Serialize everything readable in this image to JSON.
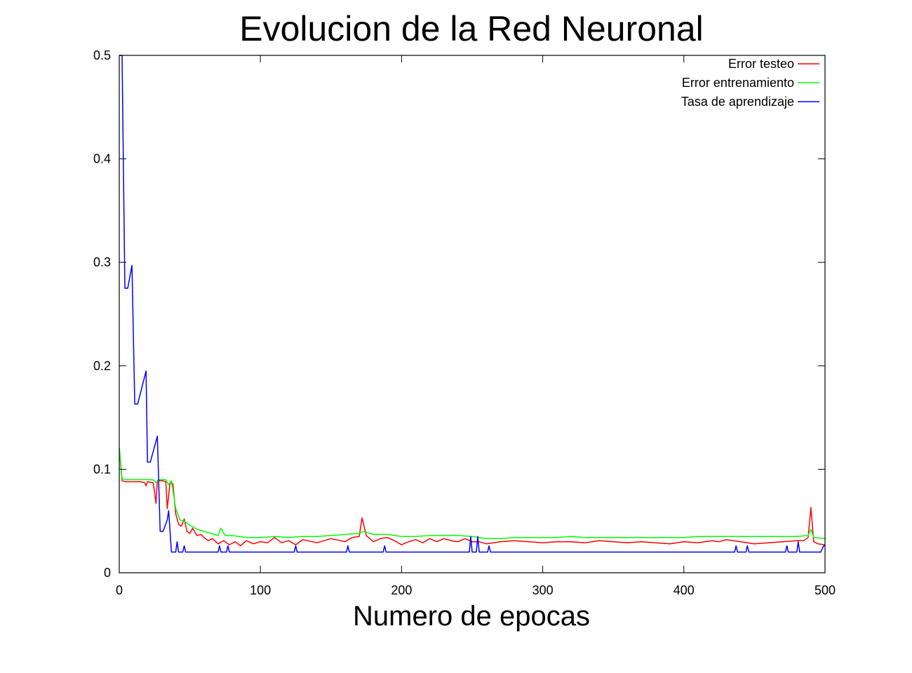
{
  "chart_data": {
    "type": "line",
    "title": "Evolucion de la Red Neuronal",
    "xlabel": "Numero de epocas",
    "ylabel": "",
    "xlim": [
      0,
      500
    ],
    "ylim": [
      0,
      0.5
    ],
    "xticks": [
      0,
      100,
      200,
      300,
      400,
      500
    ],
    "xtick_labels": [
      "0",
      "100",
      "200",
      "300",
      "400",
      "500"
    ],
    "yticks": [
      0,
      0.1,
      0.2,
      0.3,
      0.4,
      0.5
    ],
    "ytick_labels": [
      "0",
      "0.1",
      "0.2",
      "0.3",
      "0.4",
      "0.5"
    ],
    "grid": false,
    "legend_position": "top-right",
    "series": [
      {
        "name": "Error testeo",
        "color": "#ff0000",
        "points": [
          [
            0,
            0.12
          ],
          [
            2,
            0.089
          ],
          [
            5,
            0.088
          ],
          [
            10,
            0.088
          ],
          [
            15,
            0.088
          ],
          [
            18,
            0.087
          ],
          [
            19,
            0.084
          ],
          [
            20,
            0.088
          ],
          [
            24,
            0.087
          ],
          [
            25,
            0.078
          ],
          [
            26,
            0.067
          ],
          [
            27,
            0.089
          ],
          [
            30,
            0.089
          ],
          [
            33,
            0.088
          ],
          [
            34,
            0.062
          ],
          [
            36,
            0.087
          ],
          [
            38,
            0.086
          ],
          [
            40,
            0.057
          ],
          [
            42,
            0.047
          ],
          [
            44,
            0.045
          ],
          [
            46,
            0.052
          ],
          [
            48,
            0.04
          ],
          [
            50,
            0.038
          ],
          [
            52,
            0.043
          ],
          [
            55,
            0.036
          ],
          [
            58,
            0.037
          ],
          [
            60,
            0.034
          ],
          [
            63,
            0.031
          ],
          [
            66,
            0.033
          ],
          [
            70,
            0.028
          ],
          [
            74,
            0.031
          ],
          [
            78,
            0.027
          ],
          [
            82,
            0.03
          ],
          [
            86,
            0.026
          ],
          [
            90,
            0.031
          ],
          [
            95,
            0.028
          ],
          [
            100,
            0.03
          ],
          [
            105,
            0.029
          ],
          [
            110,
            0.034
          ],
          [
            115,
            0.029
          ],
          [
            120,
            0.031
          ],
          [
            125,
            0.027
          ],
          [
            130,
            0.032
          ],
          [
            140,
            0.029
          ],
          [
            150,
            0.033
          ],
          [
            160,
            0.03
          ],
          [
            165,
            0.034
          ],
          [
            170,
            0.035
          ],
          [
            172,
            0.053
          ],
          [
            175,
            0.036
          ],
          [
            180,
            0.03
          ],
          [
            185,
            0.033
          ],
          [
            190,
            0.034
          ],
          [
            195,
            0.031
          ],
          [
            200,
            0.027
          ],
          [
            205,
            0.03
          ],
          [
            210,
            0.032
          ],
          [
            215,
            0.029
          ],
          [
            220,
            0.033
          ],
          [
            225,
            0.03
          ],
          [
            230,
            0.033
          ],
          [
            235,
            0.031
          ],
          [
            240,
            0.03
          ],
          [
            245,
            0.033
          ],
          [
            250,
            0.03
          ],
          [
            255,
            0.03
          ],
          [
            260,
            0.028
          ],
          [
            265,
            0.029
          ],
          [
            270,
            0.03
          ],
          [
            280,
            0.031
          ],
          [
            290,
            0.03
          ],
          [
            300,
            0.029
          ],
          [
            310,
            0.03
          ],
          [
            320,
            0.03
          ],
          [
            330,
            0.029
          ],
          [
            340,
            0.031
          ],
          [
            350,
            0.03
          ],
          [
            360,
            0.029
          ],
          [
            370,
            0.03
          ],
          [
            380,
            0.029
          ],
          [
            390,
            0.028
          ],
          [
            400,
            0.03
          ],
          [
            410,
            0.029
          ],
          [
            420,
            0.031
          ],
          [
            425,
            0.03
          ],
          [
            430,
            0.032
          ],
          [
            440,
            0.03
          ],
          [
            450,
            0.028
          ],
          [
            460,
            0.029
          ],
          [
            470,
            0.03
          ],
          [
            480,
            0.031
          ],
          [
            485,
            0.031
          ],
          [
            488,
            0.034
          ],
          [
            490,
            0.063
          ],
          [
            492,
            0.03
          ],
          [
            495,
            0.028
          ],
          [
            500,
            0.027
          ]
        ]
      },
      {
        "name": "Error entrenamiento",
        "color": "#00ff00",
        "points": [
          [
            0,
            0.121
          ],
          [
            2,
            0.091
          ],
          [
            5,
            0.09
          ],
          [
            10,
            0.09
          ],
          [
            15,
            0.09
          ],
          [
            20,
            0.09
          ],
          [
            24,
            0.09
          ],
          [
            26,
            0.087
          ],
          [
            28,
            0.09
          ],
          [
            33,
            0.09
          ],
          [
            35,
            0.085
          ],
          [
            37,
            0.089
          ],
          [
            40,
            0.062
          ],
          [
            43,
            0.051
          ],
          [
            46,
            0.05
          ],
          [
            50,
            0.046
          ],
          [
            55,
            0.042
          ],
          [
            60,
            0.04
          ],
          [
            65,
            0.038
          ],
          [
            70,
            0.036
          ],
          [
            72,
            0.043
          ],
          [
            75,
            0.036
          ],
          [
            80,
            0.036
          ],
          [
            90,
            0.034
          ],
          [
            100,
            0.034
          ],
          [
            110,
            0.035
          ],
          [
            120,
            0.034
          ],
          [
            130,
            0.035
          ],
          [
            140,
            0.035
          ],
          [
            150,
            0.036
          ],
          [
            160,
            0.037
          ],
          [
            170,
            0.038
          ],
          [
            173,
            0.04
          ],
          [
            180,
            0.037
          ],
          [
            190,
            0.037
          ],
          [
            200,
            0.035
          ],
          [
            210,
            0.035
          ],
          [
            220,
            0.036
          ],
          [
            230,
            0.036
          ],
          [
            240,
            0.036
          ],
          [
            250,
            0.035
          ],
          [
            260,
            0.033
          ],
          [
            270,
            0.033
          ],
          [
            280,
            0.034
          ],
          [
            290,
            0.034
          ],
          [
            300,
            0.034
          ],
          [
            310,
            0.034
          ],
          [
            320,
            0.035
          ],
          [
            330,
            0.034
          ],
          [
            340,
            0.034
          ],
          [
            350,
            0.034
          ],
          [
            360,
            0.034
          ],
          [
            370,
            0.034
          ],
          [
            380,
            0.034
          ],
          [
            390,
            0.034
          ],
          [
            400,
            0.034
          ],
          [
            410,
            0.035
          ],
          [
            420,
            0.035
          ],
          [
            430,
            0.035
          ],
          [
            440,
            0.035
          ],
          [
            450,
            0.035
          ],
          [
            460,
            0.035
          ],
          [
            470,
            0.035
          ],
          [
            480,
            0.035
          ],
          [
            488,
            0.036
          ],
          [
            490,
            0.042
          ],
          [
            492,
            0.034
          ],
          [
            500,
            0.033
          ]
        ]
      },
      {
        "name": "Tasa de aprendizaje",
        "color": "#0000ff",
        "points": [
          [
            0,
            0.5
          ],
          [
            2,
            0.5
          ],
          [
            4,
            0.275
          ],
          [
            6,
            0.275
          ],
          [
            9,
            0.297
          ],
          [
            11,
            0.163
          ],
          [
            13,
            0.163
          ],
          [
            19,
            0.195
          ],
          [
            20,
            0.107
          ],
          [
            22,
            0.107
          ],
          [
            27,
            0.132
          ],
          [
            29,
            0.04
          ],
          [
            31,
            0.04
          ],
          [
            34,
            0.051
          ],
          [
            35,
            0.06
          ],
          [
            37,
            0.02
          ],
          [
            40,
            0.02
          ],
          [
            41,
            0.03
          ],
          [
            42,
            0.02
          ],
          [
            45,
            0.02
          ],
          [
            46,
            0.026
          ],
          [
            47,
            0.02
          ],
          [
            70,
            0.02
          ],
          [
            71,
            0.026
          ],
          [
            72,
            0.02
          ],
          [
            76,
            0.02
          ],
          [
            77,
            0.026
          ],
          [
            78,
            0.02
          ],
          [
            124,
            0.02
          ],
          [
            125,
            0.026
          ],
          [
            126,
            0.02
          ],
          [
            161,
            0.02
          ],
          [
            162,
            0.026
          ],
          [
            163,
            0.02
          ],
          [
            187,
            0.02
          ],
          [
            188,
            0.026
          ],
          [
            189,
            0.02
          ],
          [
            248,
            0.02
          ],
          [
            249,
            0.035
          ],
          [
            250,
            0.02
          ],
          [
            253,
            0.02
          ],
          [
            254,
            0.035
          ],
          [
            255,
            0.02
          ],
          [
            261,
            0.02
          ],
          [
            262,
            0.026
          ],
          [
            263,
            0.02
          ],
          [
            436,
            0.02
          ],
          [
            437,
            0.026
          ],
          [
            438,
            0.02
          ],
          [
            444,
            0.02
          ],
          [
            445,
            0.026
          ],
          [
            446,
            0.02
          ],
          [
            472,
            0.02
          ],
          [
            473,
            0.026
          ],
          [
            474,
            0.02
          ],
          [
            480,
            0.02
          ],
          [
            481,
            0.03
          ],
          [
            482,
            0.02
          ],
          [
            497,
            0.02
          ],
          [
            499,
            0.026
          ],
          [
            500,
            0.026
          ]
        ]
      }
    ]
  }
}
